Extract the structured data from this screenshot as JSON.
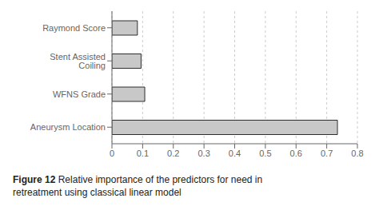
{
  "chart_data": {
    "type": "bar",
    "title": "Figure 12",
    "subtitle": "Relative importance of the predictors for need in\nretreatment using classical linear model",
    "categories": [
      "Aneurysm Location",
      "WFNS Grade",
      "Stent Assisted Coiling",
      "Raymond Score"
    ],
    "values": [
      0.735,
      0.107,
      0.095,
      0.083
    ],
    "color": "#c8c8c8",
    "orientation": "horizontal",
    "xlim": [
      0,
      0.8
    ],
    "xticks": [
      0,
      0.1,
      0.2,
      0.3,
      0.4,
      0.5,
      0.6,
      0.7,
      0.8
    ],
    "grid": true
  }
}
